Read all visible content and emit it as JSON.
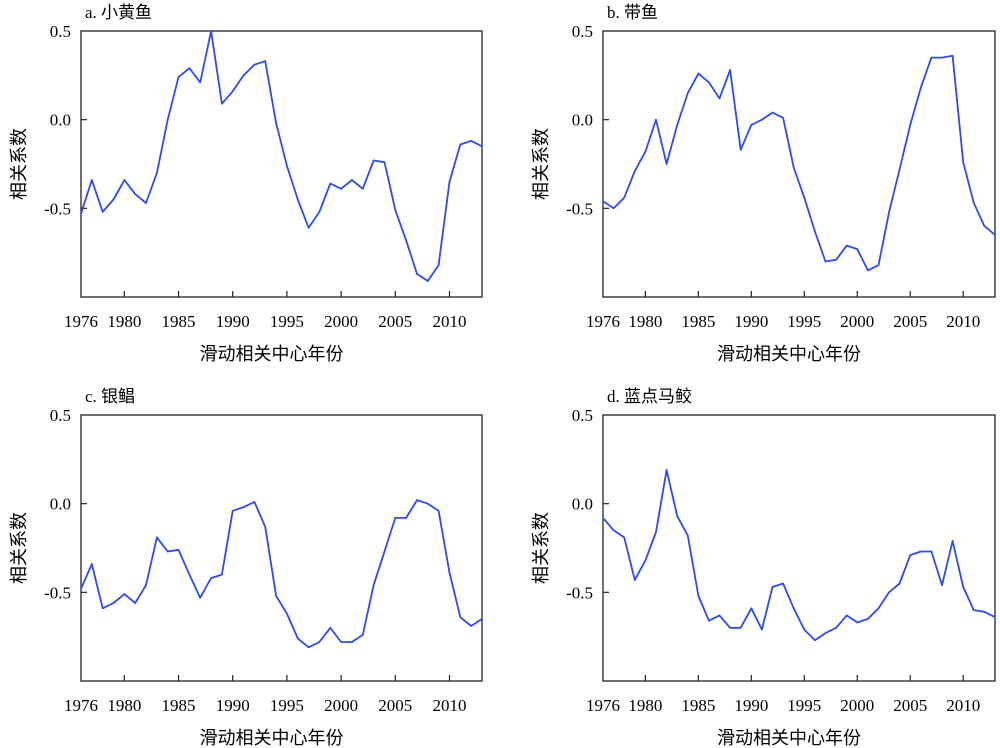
{
  "chart_data": [
    {
      "type": "line",
      "title": "a. 小黄鱼",
      "xlabel": "滑动相关中心年份",
      "ylabel": "相关系数",
      "xlim": [
        1976,
        2013
      ],
      "ylim": [
        -1.0,
        0.5
      ],
      "xticks": [
        1976,
        1980,
        1985,
        1990,
        1995,
        2000,
        2005,
        2010
      ],
      "yticks": [
        0.5,
        0.0,
        -0.5
      ],
      "ytick_labels": [
        "0.5",
        "0.0",
        "-0.5"
      ],
      "grid": false,
      "color": "#2b4cf0",
      "x": [
        1976,
        1977,
        1978,
        1979,
        1980,
        1981,
        1982,
        1983,
        1984,
        1985,
        1986,
        1987,
        1988,
        1989,
        1990,
        1991,
        1992,
        1993,
        1994,
        1995,
        1996,
        1997,
        1998,
        1999,
        2000,
        2001,
        2002,
        2003,
        2004,
        2005,
        2006,
        2007,
        2008,
        2009,
        2010,
        2011,
        2012,
        2013
      ],
      "values": [
        -0.53,
        -0.34,
        -0.52,
        -0.45,
        -0.34,
        -0.42,
        -0.47,
        -0.3,
        0.0,
        0.24,
        0.29,
        0.21,
        0.5,
        0.09,
        0.16,
        0.25,
        0.31,
        0.33,
        -0.02,
        -0.26,
        -0.45,
        -0.61,
        -0.52,
        -0.36,
        -0.39,
        -0.34,
        -0.39,
        -0.23,
        -0.24,
        -0.51,
        -0.68,
        -0.87,
        -0.91,
        -0.82,
        -0.35,
        -0.14,
        -0.12,
        -0.15
      ]
    },
    {
      "type": "line",
      "title": "b. 带鱼",
      "xlabel": "滑动相关中心年份",
      "ylabel": "相关系数",
      "xlim": [
        1976,
        2013
      ],
      "ylim": [
        -1.0,
        0.5
      ],
      "xticks": [
        1976,
        1980,
        1985,
        1990,
        1995,
        2000,
        2005,
        2010
      ],
      "yticks": [
        0.5,
        0.0,
        -0.5
      ],
      "ytick_labels": [
        "0.5",
        "0.0",
        "-0.5"
      ],
      "grid": false,
      "color": "#2b4cf0",
      "x": [
        1976,
        1977,
        1978,
        1979,
        1980,
        1981,
        1982,
        1983,
        1984,
        1985,
        1986,
        1987,
        1988,
        1989,
        1990,
        1991,
        1992,
        1993,
        1994,
        1995,
        1996,
        1997,
        1998,
        1999,
        2000,
        2001,
        2002,
        2003,
        2004,
        2005,
        2006,
        2007,
        2008,
        2009,
        2010,
        2011,
        2012,
        2013
      ],
      "values": [
        -0.46,
        -0.5,
        -0.44,
        -0.29,
        -0.18,
        0.0,
        -0.25,
        -0.03,
        0.15,
        0.26,
        0.21,
        0.12,
        0.28,
        -0.17,
        -0.03,
        0.0,
        0.04,
        0.01,
        -0.27,
        -0.44,
        -0.63,
        -0.8,
        -0.79,
        -0.71,
        -0.73,
        -0.85,
        -0.82,
        -0.52,
        -0.28,
        -0.03,
        0.18,
        0.35,
        0.35,
        0.36,
        -0.24,
        -0.47,
        -0.6,
        -0.65
      ]
    },
    {
      "type": "line",
      "title": "c. 银鲳",
      "xlabel": "滑动相关中心年份",
      "ylabel": "相关系数",
      "xlim": [
        1976,
        2013
      ],
      "ylim": [
        -1.0,
        0.5
      ],
      "xticks": [
        1976,
        1980,
        1985,
        1990,
        1995,
        2000,
        2005,
        2010
      ],
      "yticks": [
        0.5,
        0.0,
        -0.5
      ],
      "ytick_labels": [
        "0.5",
        "0.0",
        "-0.5"
      ],
      "grid": false,
      "color": "#2b4cf0",
      "x": [
        1976,
        1977,
        1978,
        1979,
        1980,
        1981,
        1982,
        1983,
        1984,
        1985,
        1986,
        1987,
        1988,
        1989,
        1990,
        1991,
        1992,
        1993,
        1994,
        1995,
        1996,
        1997,
        1998,
        1999,
        2000,
        2001,
        2002,
        2003,
        2004,
        2005,
        2006,
        2007,
        2008,
        2009,
        2010,
        2011,
        2012,
        2013
      ],
      "values": [
        -0.48,
        -0.34,
        -0.59,
        -0.56,
        -0.51,
        -0.56,
        -0.46,
        -0.19,
        -0.27,
        -0.26,
        -0.4,
        -0.53,
        -0.42,
        -0.4,
        -0.04,
        -0.02,
        0.01,
        -0.13,
        -0.52,
        -0.62,
        -0.76,
        -0.81,
        -0.78,
        -0.7,
        -0.78,
        -0.78,
        -0.74,
        -0.46,
        -0.27,
        -0.08,
        -0.08,
        0.02,
        0.0,
        -0.04,
        -0.39,
        -0.64,
        -0.69,
        -0.65
      ]
    },
    {
      "type": "line",
      "title": "d. 蓝点马鲛",
      "xlabel": "滑动相关中心年份",
      "ylabel": "相关系数",
      "xlim": [
        1976,
        2013
      ],
      "ylim": [
        -1.0,
        0.5
      ],
      "xticks": [
        1976,
        1980,
        1985,
        1990,
        1995,
        2000,
        2005,
        2010
      ],
      "yticks": [
        0.5,
        0.0,
        -0.5
      ],
      "ytick_labels": [
        "0.5",
        "0.0",
        "-0.5"
      ],
      "grid": false,
      "color": "#2b4cf0",
      "x": [
        1976,
        1977,
        1978,
        1979,
        1980,
        1981,
        1982,
        1983,
        1984,
        1985,
        1986,
        1987,
        1988,
        1989,
        1990,
        1991,
        1992,
        1993,
        1994,
        1995,
        1996,
        1997,
        1998,
        1999,
        2000,
        2001,
        2002,
        2003,
        2004,
        2005,
        2006,
        2007,
        2008,
        2009,
        2010,
        2011,
        2012,
        2013
      ],
      "values": [
        -0.08,
        -0.15,
        -0.19,
        -0.43,
        -0.32,
        -0.16,
        0.19,
        -0.07,
        -0.18,
        -0.52,
        -0.66,
        -0.63,
        -0.7,
        -0.7,
        -0.59,
        -0.71,
        -0.47,
        -0.45,
        -0.59,
        -0.71,
        -0.77,
        -0.73,
        -0.7,
        -0.63,
        -0.67,
        -0.65,
        -0.59,
        -0.5,
        -0.45,
        -0.29,
        -0.27,
        -0.27,
        -0.46,
        -0.21,
        -0.47,
        -0.6,
        -0.61,
        -0.64
      ]
    }
  ]
}
